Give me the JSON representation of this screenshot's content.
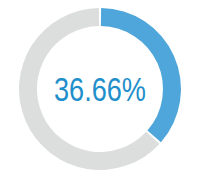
{
  "chart_data": {
    "type": "donut",
    "values": [
      36.66,
      63.34
    ],
    "value_labels": [
      "36.66%",
      null
    ],
    "colors": [
      "#4fa6da",
      "#dcdddd"
    ],
    "data_labels": true
  }
}
